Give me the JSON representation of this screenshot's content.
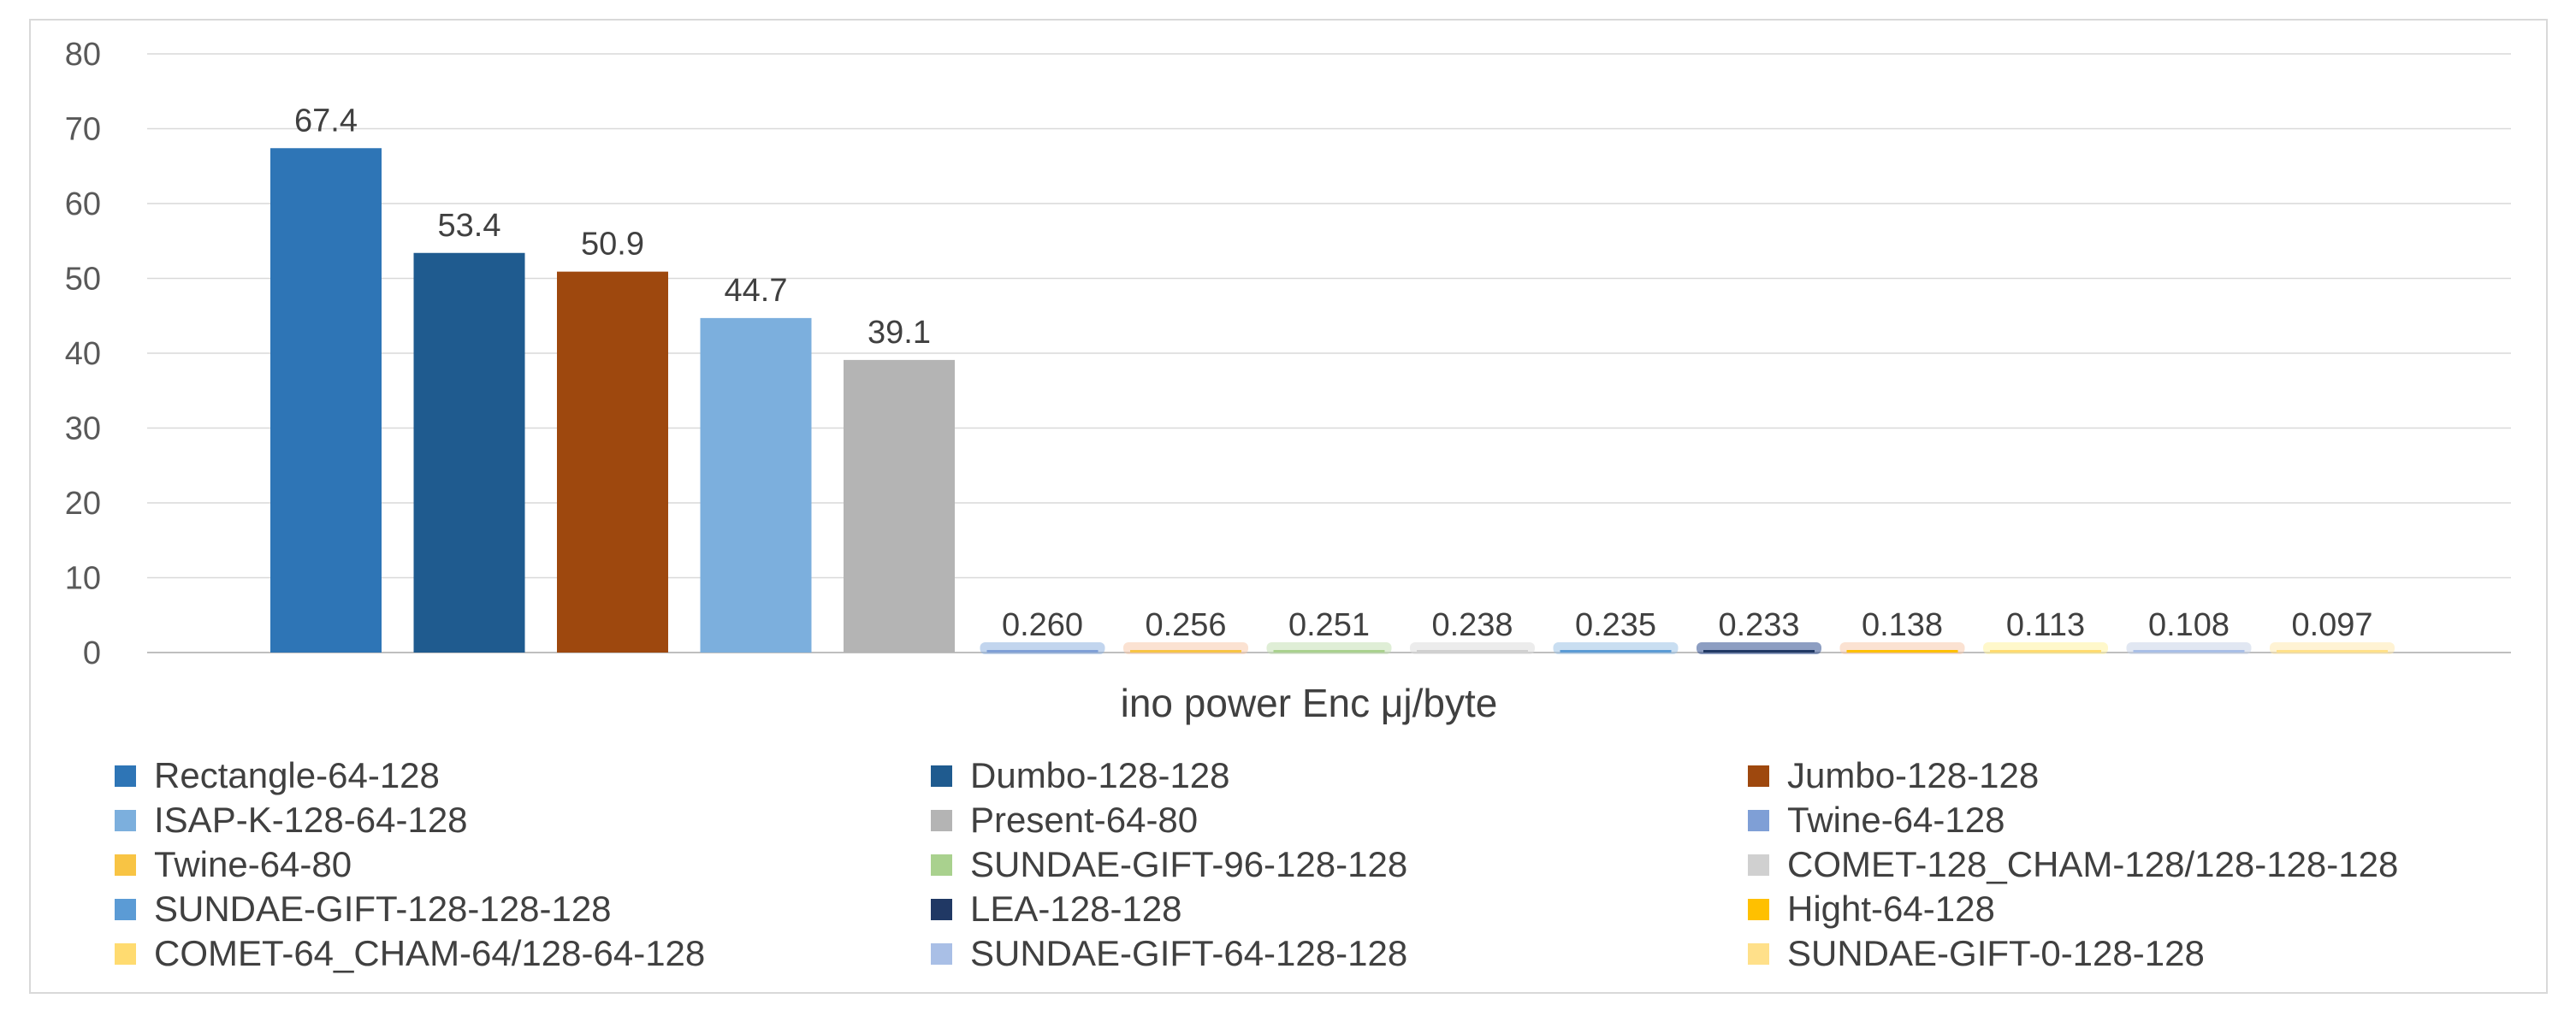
{
  "chart_data": {
    "type": "bar",
    "title": "",
    "xlabel": "ino power Enc μj/byte",
    "ylabel": "",
    "ylim": [
      0,
      80
    ],
    "yticks": [
      0,
      10,
      20,
      30,
      40,
      50,
      60,
      70,
      80
    ],
    "grid": true,
    "legend_position": "bottom",
    "series": [
      {
        "name": "Rectangle-64-128",
        "value": 67.4,
        "label": "67.4",
        "color": "#2e75b6"
      },
      {
        "name": "Dumbo-128-128",
        "value": 53.4,
        "label": "53.4",
        "color": "#1f5b8f"
      },
      {
        "name": "Jumbo-128-128",
        "value": 50.9,
        "label": "50.9",
        "color": "#9e480e"
      },
      {
        "name": "ISAP-K-128-64-128",
        "value": 44.7,
        "label": "44.7",
        "color": "#7cafdd"
      },
      {
        "name": "Present-64-80",
        "value": 39.1,
        "label": "39.1",
        "color": "#b4b4b4"
      },
      {
        "name": "Twine-64-128",
        "value": 0.26,
        "label": "0.260",
        "color": "#7f9fd6"
      },
      {
        "name": "Twine-64-80",
        "value": 0.256,
        "label": "0.256",
        "color": "#f8c444"
      },
      {
        "name": "SUNDAE-GIFT-96-128-128",
        "value": 0.251,
        "label": "0.251",
        "color": "#a9d18e"
      },
      {
        "name": "COMET-128_CHAM-128/128-128-128",
        "value": 0.238,
        "label": "0.238",
        "color": "#d0d0d0"
      },
      {
        "name": "SUNDAE-GIFT-128-128-128",
        "value": 0.235,
        "label": "0.235",
        "color": "#5b9bd5"
      },
      {
        "name": "LEA-128-128",
        "value": 0.233,
        "label": "0.233",
        "color": "#203864"
      },
      {
        "name": "Hight-64-128",
        "value": 0.138,
        "label": "0.138",
        "color": "#ffc000"
      },
      {
        "name": "COMET-64_CHAM-64/128-64-128",
        "value": 0.113,
        "label": "0.113",
        "color": "#ffdb70"
      },
      {
        "name": "SUNDAE-GIFT-64-128-128",
        "value": 0.108,
        "label": "0.108",
        "color": "#a9bfe6"
      },
      {
        "name": "SUNDAE-GIFT-0-128-128",
        "value": 0.097,
        "label": "0.097",
        "color": "#ffe08a"
      }
    ],
    "bar_glow_colors": [
      "#8fb2e0",
      "#f8cbad",
      "#c5e0b4",
      "#dcdcdc",
      "#9dc3e6",
      "#2f4f8f",
      "#f8cbad",
      "#fff2a0",
      "#c9d3e8",
      "#ffe9b0"
    ]
  }
}
